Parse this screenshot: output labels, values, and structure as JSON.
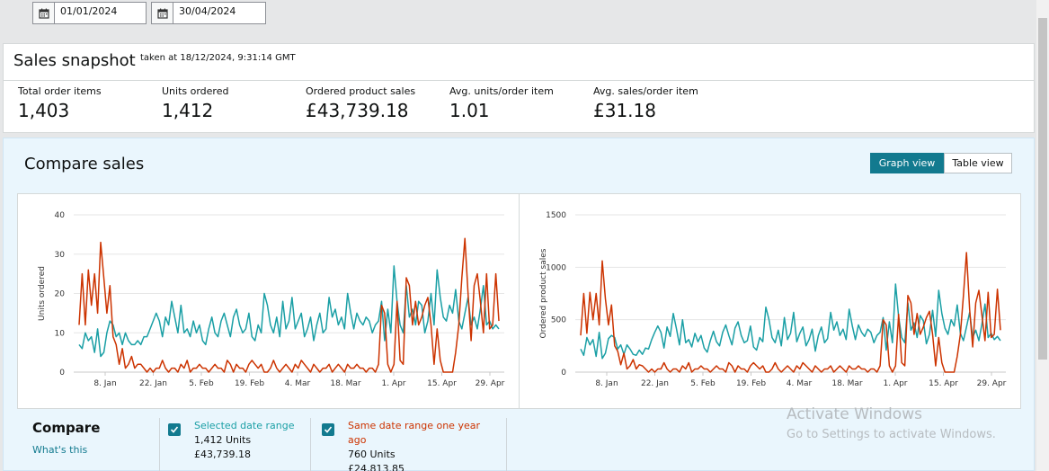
{
  "date_range": {
    "start": "01/01/2024",
    "end": "30/04/2024"
  },
  "snapshot": {
    "title": "Sales snapshot",
    "taken": "taken at 18/12/2024, 9:31:14 GMT",
    "metrics": [
      {
        "label": "Total order items",
        "value": "1,403"
      },
      {
        "label": "Units ordered",
        "value": "1,412"
      },
      {
        "label": "Ordered product sales",
        "value": "£43,739.18"
      },
      {
        "label": "Avg. units/order item",
        "value": "1.01"
      },
      {
        "label": "Avg. sales/order item",
        "value": "£31.18"
      }
    ]
  },
  "compare": {
    "title": "Compare sales",
    "graph_view": "Graph view",
    "table_view": "Table view",
    "label": "Compare",
    "whats_this": "What's this",
    "selected": {
      "title": "Selected date range",
      "units": "1,412 Units",
      "sales": "£43,739.18",
      "color": "#1a9fa5"
    },
    "previous": {
      "title_line1": "Same date range one year",
      "title_line2": "ago",
      "units": "760 Units",
      "sales": "£24,813.85",
      "color": "#cc3300"
    }
  },
  "watermark": {
    "line1": "Activate Windows",
    "line2": "Go to Settings to activate Windows."
  },
  "chart_data": [
    {
      "type": "line",
      "ylabel": "Units ordered",
      "ylim": [
        0,
        40
      ],
      "yticks": [
        "0",
        "10",
        "20",
        "30",
        "40"
      ],
      "xticks": [
        "8. Jan",
        "22. Jan",
        "5. Feb",
        "19. Feb",
        "4. Mar",
        "18. Mar",
        "1. Apr",
        "15. Apr",
        "29. Apr"
      ],
      "series": [
        {
          "color": "#1a9fa5",
          "values": [
            7,
            6,
            10,
            8,
            9,
            5,
            11,
            4,
            5,
            10,
            13,
            12,
            9,
            10,
            7,
            10,
            8,
            7,
            7,
            8,
            7,
            9,
            9,
            11,
            13,
            15,
            13,
            9,
            14,
            12,
            18,
            14,
            10,
            17,
            10,
            11,
            9,
            13,
            10,
            12,
            8,
            7,
            11,
            14,
            10,
            9,
            13,
            15,
            12,
            9,
            14,
            16,
            12,
            10,
            11,
            15,
            9,
            8,
            12,
            10,
            20,
            17,
            12,
            10,
            14,
            9,
            18,
            11,
            13,
            19,
            11,
            13,
            15,
            9,
            11,
            14,
            8,
            12,
            15,
            10,
            11,
            19,
            14,
            16,
            12,
            14,
            11,
            20,
            15,
            11,
            15,
            13,
            12,
            14,
            13,
            10,
            12,
            13,
            18,
            8,
            16,
            10,
            27,
            18,
            12,
            10,
            22,
            14,
            16,
            12,
            18,
            17,
            10,
            13,
            20,
            12,
            26,
            19,
            14,
            13,
            17,
            15,
            21,
            13,
            11,
            15,
            19,
            12,
            14,
            11,
            16,
            22,
            12,
            13,
            11,
            12,
            11
          ]
        },
        {
          "color": "#cc3300",
          "values": [
            12,
            25,
            12,
            26,
            17,
            25,
            15,
            33,
            24,
            15,
            22,
            9,
            7,
            2,
            6,
            1,
            2,
            4,
            1,
            2,
            2,
            1,
            0,
            1,
            0,
            1,
            1,
            3,
            1,
            0,
            1,
            1,
            0,
            2,
            1,
            3,
            0,
            1,
            1,
            2,
            1,
            1,
            0,
            1,
            2,
            1,
            1,
            0,
            3,
            2,
            0,
            2,
            1,
            1,
            0,
            2,
            3,
            2,
            1,
            2,
            0,
            0,
            1,
            3,
            1,
            0,
            1,
            2,
            1,
            0,
            2,
            1,
            3,
            2,
            1,
            0,
            2,
            1,
            0,
            1,
            1,
            2,
            0,
            1,
            2,
            1,
            0,
            2,
            1,
            1,
            2,
            1,
            1,
            0,
            1,
            1,
            0,
            2,
            17,
            15,
            2,
            0,
            2,
            18,
            3,
            2,
            24,
            22,
            12,
            18,
            12,
            14,
            17,
            19,
            12,
            2,
            11,
            3,
            0,
            0,
            0,
            0,
            5,
            12,
            24,
            34,
            20,
            8,
            22,
            25,
            18,
            10,
            25,
            11,
            12,
            25,
            13
          ]
        }
      ]
    },
    {
      "type": "line",
      "ylabel": "Ordered product sales",
      "ylim": [
        0,
        1500
      ],
      "yticks": [
        "0",
        "500",
        "1000",
        "1500"
      ],
      "xticks": [
        "8. Jan",
        "22. Jan",
        "5. Feb",
        "19. Feb",
        "4. Mar",
        "18. Mar",
        "1. Apr",
        "15. Apr",
        "29. Apr"
      ],
      "series": [
        {
          "color": "#1a9fa5",
          "values": [
            220,
            160,
            330,
            260,
            310,
            150,
            380,
            130,
            180,
            320,
            350,
            330,
            220,
            260,
            170,
            260,
            220,
            170,
            160,
            210,
            170,
            230,
            220,
            310,
            380,
            440,
            380,
            230,
            430,
            340,
            560,
            420,
            260,
            500,
            280,
            310,
            240,
            370,
            290,
            350,
            230,
            190,
            300,
            390,
            290,
            250,
            380,
            450,
            350,
            260,
            420,
            480,
            350,
            280,
            300,
            440,
            240,
            210,
            330,
            290,
            620,
            500,
            330,
            280,
            400,
            250,
            520,
            310,
            370,
            570,
            290,
            370,
            430,
            250,
            310,
            410,
            200,
            350,
            430,
            280,
            320,
            570,
            400,
            480,
            350,
            410,
            310,
            600,
            440,
            310,
            450,
            380,
            340,
            410,
            380,
            280,
            350,
            380,
            520,
            210,
            480,
            280,
            840,
            530,
            330,
            280,
            660,
            400,
            470,
            330,
            540,
            490,
            270,
            360,
            590,
            340,
            780,
            560,
            420,
            360,
            500,
            440,
            640,
            370,
            300,
            430,
            570,
            330,
            400,
            300,
            460,
            650,
            330,
            370,
            310,
            340,
            300
          ]
        },
        {
          "color": "#cc3300",
          "values": [
            350,
            750,
            370,
            760,
            500,
            750,
            450,
            1060,
            700,
            450,
            640,
            250,
            200,
            70,
            180,
            30,
            60,
            120,
            30,
            70,
            60,
            30,
            0,
            30,
            0,
            30,
            30,
            90,
            30,
            0,
            30,
            30,
            0,
            60,
            30,
            90,
            0,
            30,
            30,
            60,
            30,
            30,
            0,
            30,
            60,
            30,
            30,
            0,
            90,
            60,
            0,
            60,
            30,
            30,
            0,
            60,
            90,
            60,
            30,
            60,
            0,
            0,
            30,
            90,
            30,
            0,
            30,
            60,
            30,
            0,
            60,
            30,
            90,
            60,
            30,
            0,
            60,
            30,
            0,
            30,
            30,
            60,
            0,
            30,
            60,
            30,
            0,
            60,
            30,
            30,
            60,
            30,
            30,
            0,
            30,
            30,
            0,
            60,
            500,
            450,
            60,
            0,
            60,
            550,
            90,
            60,
            730,
            660,
            360,
            560,
            360,
            430,
            520,
            580,
            360,
            60,
            330,
            90,
            0,
            0,
            0,
            0,
            150,
            360,
            730,
            1140,
            600,
            240,
            660,
            780,
            540,
            300,
            760,
            330,
            360,
            790,
            400
          ]
        }
      ]
    }
  ]
}
